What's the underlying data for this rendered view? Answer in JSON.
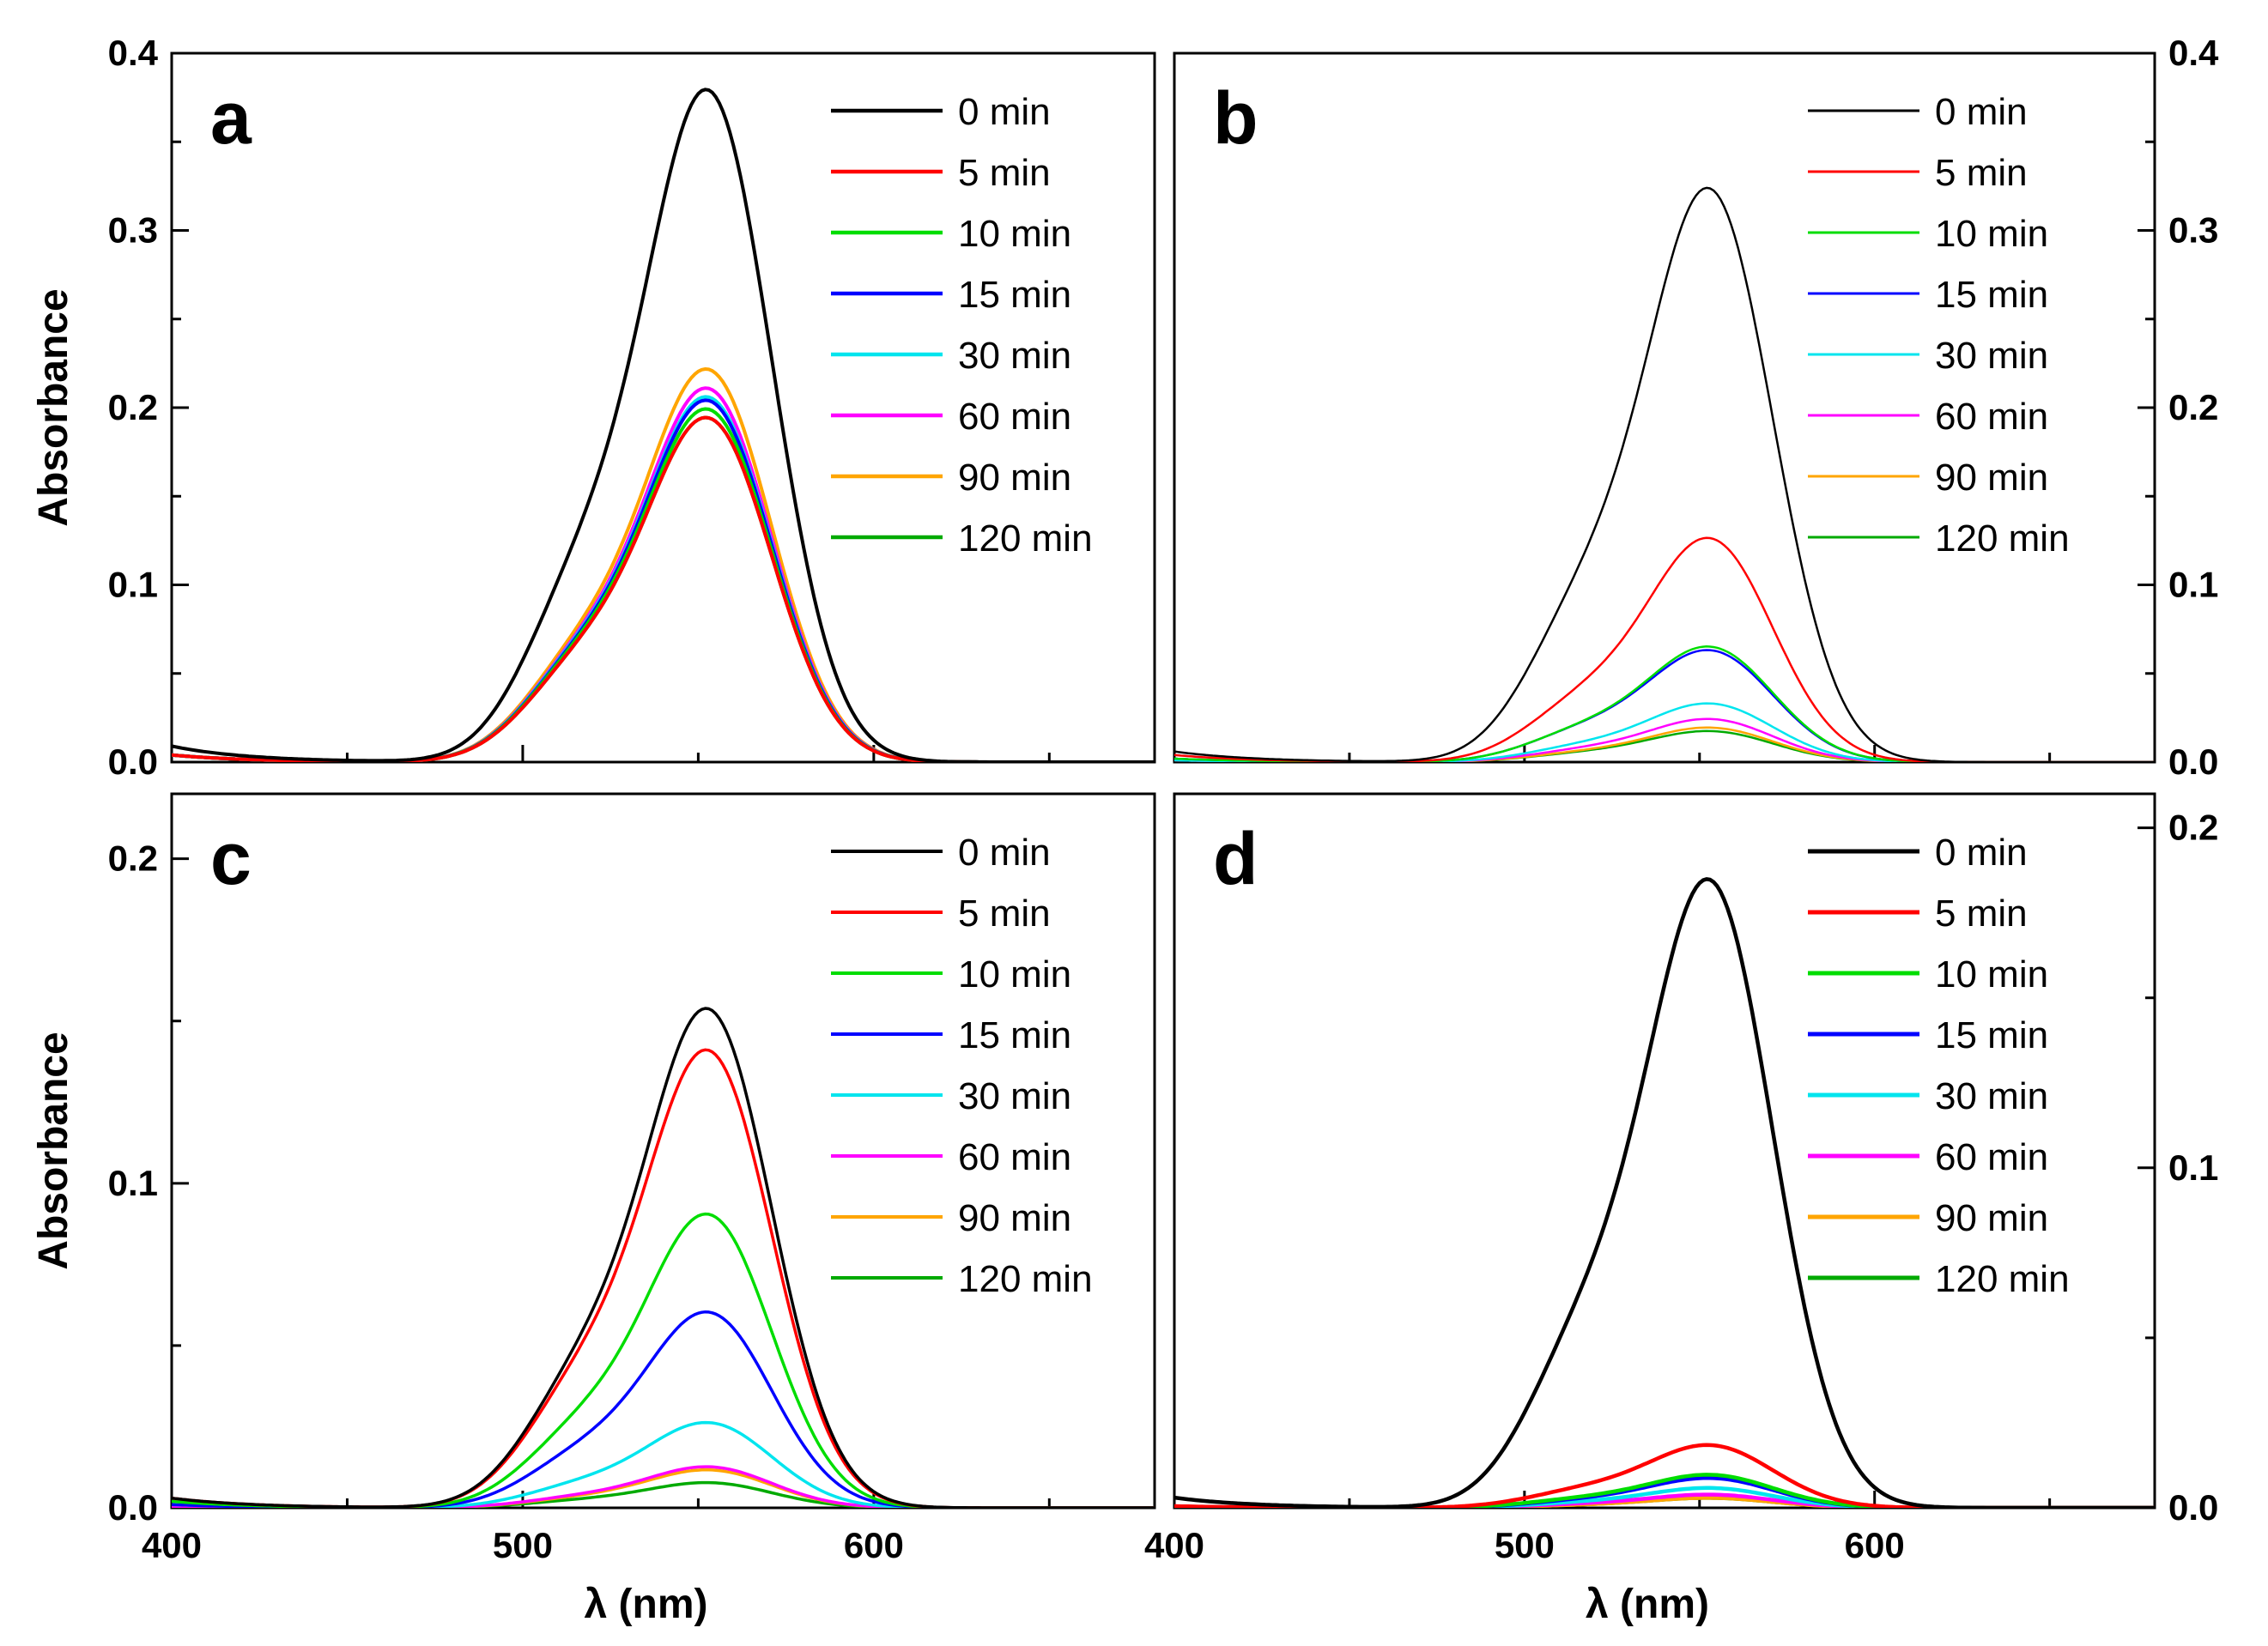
{
  "chart_data": [
    {
      "panel": "a",
      "type": "line",
      "xlabel": "",
      "ylabel": "Absorbance",
      "xlim": [
        400,
        680
      ],
      "ylim": [
        0,
        0.4
      ],
      "yticks": [
        "0.0",
        "0.1",
        "0.2",
        "0.3",
        "0.4"
      ],
      "ytick_values": [
        0,
        0.1,
        0.2,
        0.3,
        0.4
      ],
      "yaxis_side": "left",
      "xtick_values": [
        400,
        500,
        600
      ],
      "xtick_labels": [],
      "legend_position": "top-right",
      "series": [
        {
          "name": "0 min",
          "color": "#000000",
          "peak": 0.39,
          "shoulder": 0.14,
          "base400": 0.009
        },
        {
          "name": "5 min",
          "color": "#ff0000",
          "peak": 0.2,
          "shoulder": 0.075,
          "base400": 0.004
        },
        {
          "name": "10 min",
          "color": "#00dd00",
          "peak": 0.205,
          "shoulder": 0.077,
          "base400": 0.004
        },
        {
          "name": "15 min",
          "color": "#0000ff",
          "peak": 0.21,
          "shoulder": 0.078,
          "base400": 0.004
        },
        {
          "name": "30 min",
          "color": "#00e5ee",
          "peak": 0.212,
          "shoulder": 0.079,
          "base400": 0.004
        },
        {
          "name": "60 min",
          "color": "#ff00ff",
          "peak": 0.217,
          "shoulder": 0.08,
          "base400": 0.004
        },
        {
          "name": "90 min",
          "color": "#ffa500",
          "peak": 0.228,
          "shoulder": 0.083,
          "base400": 0.004
        },
        {
          "name": "120 min",
          "color": "#00aa00",
          "peak": 0.2,
          "shoulder": 0.075,
          "base400": 0.004
        }
      ]
    },
    {
      "panel": "b",
      "type": "line",
      "xlabel": "",
      "ylabel": "",
      "xlim": [
        400,
        680
      ],
      "ylim": [
        0,
        0.4
      ],
      "yticks": [
        "0.0",
        "0.1",
        "0.2",
        "0.3",
        "0.4"
      ],
      "ytick_values": [
        0,
        0.1,
        0.2,
        0.3,
        0.4
      ],
      "yaxis_side": "right",
      "xtick_values": [
        400,
        500,
        600
      ],
      "xtick_labels": [],
      "legend_position": "top-right",
      "series": [
        {
          "name": "0 min",
          "color": "#000000",
          "peak": 0.333,
          "shoulder": 0.12,
          "base400": 0.006
        },
        {
          "name": "5 min",
          "color": "#ff0000",
          "peak": 0.13,
          "shoulder": 0.047,
          "base400": 0.004
        },
        {
          "name": "10 min",
          "color": "#00dd00",
          "peak": 0.067,
          "shoulder": 0.024,
          "base400": 0.002
        },
        {
          "name": "15 min",
          "color": "#0000ff",
          "peak": 0.065,
          "shoulder": 0.024,
          "base400": 0.002
        },
        {
          "name": "30 min",
          "color": "#00e5ee",
          "peak": 0.034,
          "shoulder": 0.012,
          "base400": 0.001
        },
        {
          "name": "60 min",
          "color": "#ff00ff",
          "peak": 0.025,
          "shoulder": 0.009,
          "base400": 0.001
        },
        {
          "name": "90 min",
          "color": "#ffa500",
          "peak": 0.02,
          "shoulder": 0.007,
          "base400": 0.001
        },
        {
          "name": "120 min",
          "color": "#00aa00",
          "peak": 0.018,
          "shoulder": 0.0065,
          "base400": 0.001
        }
      ]
    },
    {
      "panel": "c",
      "type": "line",
      "xlabel": "λ (nm)",
      "ylabel": "Absorbance",
      "xlim": [
        400,
        680
      ],
      "ylim": [
        0,
        0.22
      ],
      "yticks": [
        "0.0",
        "0.1",
        "0.2"
      ],
      "ytick_values": [
        0,
        0.1,
        0.2
      ],
      "yaxis_side": "left",
      "xtick_values": [
        400,
        500,
        600
      ],
      "xtick_labels": [
        "400",
        "500",
        "600"
      ],
      "legend_position": "top-right",
      "series": [
        {
          "name": "0 min",
          "color": "#000000",
          "peak": 0.158,
          "shoulder": 0.055,
          "base400": 0.003
        },
        {
          "name": "5 min",
          "color": "#ff0000",
          "peak": 0.145,
          "shoulder": 0.052,
          "base400": 0.003
        },
        {
          "name": "10 min",
          "color": "#00dd00",
          "peak": 0.093,
          "shoulder": 0.033,
          "base400": 0.002
        },
        {
          "name": "15 min",
          "color": "#0000ff",
          "peak": 0.062,
          "shoulder": 0.022,
          "base400": 0.001
        },
        {
          "name": "30 min",
          "color": "#00e5ee",
          "peak": 0.027,
          "shoulder": 0.0095,
          "base400": 0.001
        },
        {
          "name": "60 min",
          "color": "#ff00ff",
          "peak": 0.013,
          "shoulder": 0.0045,
          "base400": 0.0005
        },
        {
          "name": "90 min",
          "color": "#ffa500",
          "peak": 0.012,
          "shoulder": 0.004,
          "base400": 0.0005
        },
        {
          "name": "120 min",
          "color": "#00aa00",
          "peak": 0.008,
          "shoulder": 0.003,
          "base400": 0.0005
        }
      ]
    },
    {
      "panel": "d",
      "type": "line",
      "xlabel": "λ (nm)",
      "ylabel": "",
      "xlim": [
        400,
        680
      ],
      "ylim": [
        0,
        0.21
      ],
      "yticks": [
        "0.0",
        "0.1",
        "0.2"
      ],
      "ytick_values": [
        0,
        0.1,
        0.2
      ],
      "yaxis_side": "right",
      "xtick_values": [
        400,
        500,
        600
      ],
      "xtick_labels": [
        "400",
        "500",
        "600"
      ],
      "legend_position": "top-right",
      "series": [
        {
          "name": "0 min",
          "color": "#000000",
          "peak": 0.19,
          "shoulder": 0.068,
          "base400": 0.003
        },
        {
          "name": "5 min",
          "color": "#ff0000",
          "peak": 0.019,
          "shoulder": 0.007,
          "base400": 0.0005
        },
        {
          "name": "10 min",
          "color": "#00dd00",
          "peak": 0.01,
          "shoulder": 0.0035,
          "base400": 0.0003
        },
        {
          "name": "15 min",
          "color": "#0000ff",
          "peak": 0.009,
          "shoulder": 0.003,
          "base400": 0.0003
        },
        {
          "name": "30 min",
          "color": "#00e5ee",
          "peak": 0.006,
          "shoulder": 0.002,
          "base400": 0.0002
        },
        {
          "name": "60 min",
          "color": "#ff00ff",
          "peak": 0.004,
          "shoulder": 0.0014,
          "base400": 0.0002
        },
        {
          "name": "90 min",
          "color": "#ffa500",
          "peak": 0.003,
          "shoulder": 0.001,
          "base400": 0.0002
        },
        {
          "name": "120 min",
          "color": "#00aa00",
          "peak": 0.003,
          "shoulder": 0.001,
          "base400": 0.0002
        }
      ]
    }
  ]
}
